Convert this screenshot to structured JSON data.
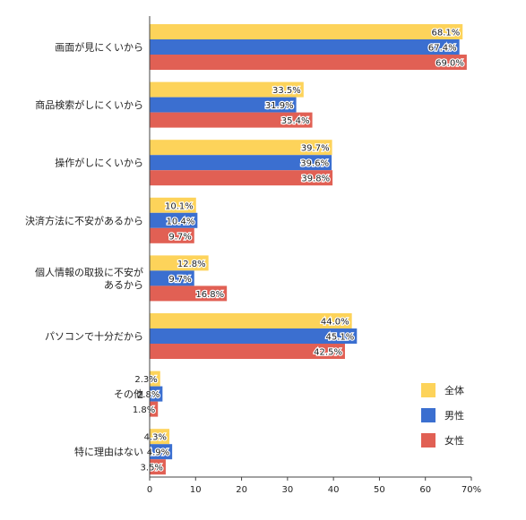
{
  "chart_data": {
    "type": "bar",
    "orientation": "horizontal",
    "categories": [
      "画面が見にくいから",
      "商品検索がしにくいから",
      "操作がしにくいから",
      "決済方法に不安があるから",
      "個人情報の取扱に不安が\nあるから",
      "パソコンで十分だから",
      "その他",
      "特に理由はない"
    ],
    "series": [
      {
        "name": "全体",
        "color": "#fdd35a",
        "values": [
          68.1,
          33.5,
          39.7,
          10.1,
          12.8,
          44.0,
          2.3,
          4.3
        ],
        "labels": [
          "68.1%",
          "33.5%",
          "39.7%",
          "10.1%",
          "12.8%",
          "44.0%",
          "2.3%",
          "4.3%"
        ]
      },
      {
        "name": "男性",
        "color": "#3b6fd0",
        "values": [
          67.4,
          31.9,
          39.6,
          10.4,
          9.7,
          45.1,
          2.8,
          4.9
        ],
        "labels": [
          "67.4%",
          "31.9%",
          "39.6%",
          "10.4%",
          "9.7%",
          "45.1%",
          "2.8%",
          "4.9%"
        ]
      },
      {
        "name": "女性",
        "color": "#e16054",
        "values": [
          69.0,
          35.4,
          39.8,
          9.7,
          16.8,
          42.5,
          1.8,
          3.5
        ],
        "labels": [
          "69.0%",
          "35.4%",
          "39.8%",
          "9.7%",
          "16.8%",
          "42.5%",
          "1.8%",
          "3.5%"
        ]
      }
    ],
    "xlim": [
      0,
      70
    ],
    "xticks": [
      0,
      10,
      20,
      30,
      40,
      50,
      60,
      70
    ],
    "xtick_labels": [
      "0",
      "10",
      "20",
      "30",
      "40",
      "50",
      "60",
      "70%"
    ],
    "legend_position": "bottom-right",
    "grid": false
  }
}
